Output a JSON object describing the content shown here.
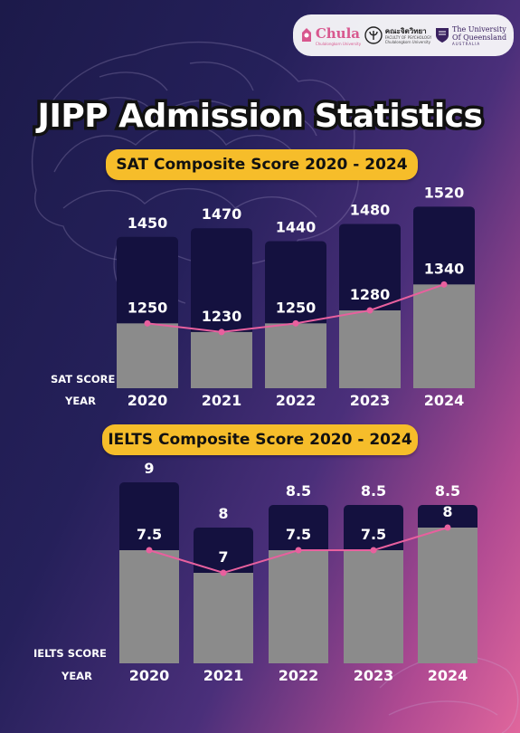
{
  "title": "JIPP Admission Statistics",
  "logos": {
    "chula": "Chula",
    "chula_sub": "Chulalongkorn University",
    "psychology": "คณะจิตวิทยา",
    "psychology_sub": "FACULTY OF PSYCHOLOGY",
    "psychology_sub2": "Chulalongkorn University",
    "uq_line1": "The University",
    "uq_line2": "Of Queensland",
    "uq_line3": "AUSTRALIA"
  },
  "colors": {
    "max_bar": "#14113f",
    "avg_bar": "#8b8b8b",
    "line": "#e8609e",
    "pill": "#f6bd2a"
  },
  "chart_data": [
    {
      "type": "bar",
      "title": "SAT Composite Score 2020 - 2024",
      "ylabel": "SAT SCORE",
      "xlabel": "YEAR",
      "categories": [
        "2020",
        "2021",
        "2022",
        "2023",
        "2024"
      ],
      "series": [
        {
          "values": [
            1450,
            1470,
            1440,
            1480,
            1520
          ]
        },
        {
          "values": [
            1250,
            1230,
            1250,
            1280,
            1340
          ]
        }
      ],
      "ylim": [
        1100,
        1550
      ],
      "grid": false,
      "legend": "none"
    },
    {
      "type": "bar",
      "title": "IELTS Composite Score 2020 - 2024",
      "ylabel": "IELTS SCORE",
      "xlabel": "YEAR",
      "categories": [
        "2020",
        "2021",
        "2022",
        "2023",
        "2024"
      ],
      "series": [
        {
          "values": [
            9,
            8,
            8.5,
            8.5,
            8.5
          ]
        },
        {
          "values": [
            7.5,
            7,
            7.5,
            7.5,
            8
          ]
        }
      ],
      "ylim": [
        5,
        9.2
      ],
      "grid": false,
      "legend": "none"
    }
  ]
}
